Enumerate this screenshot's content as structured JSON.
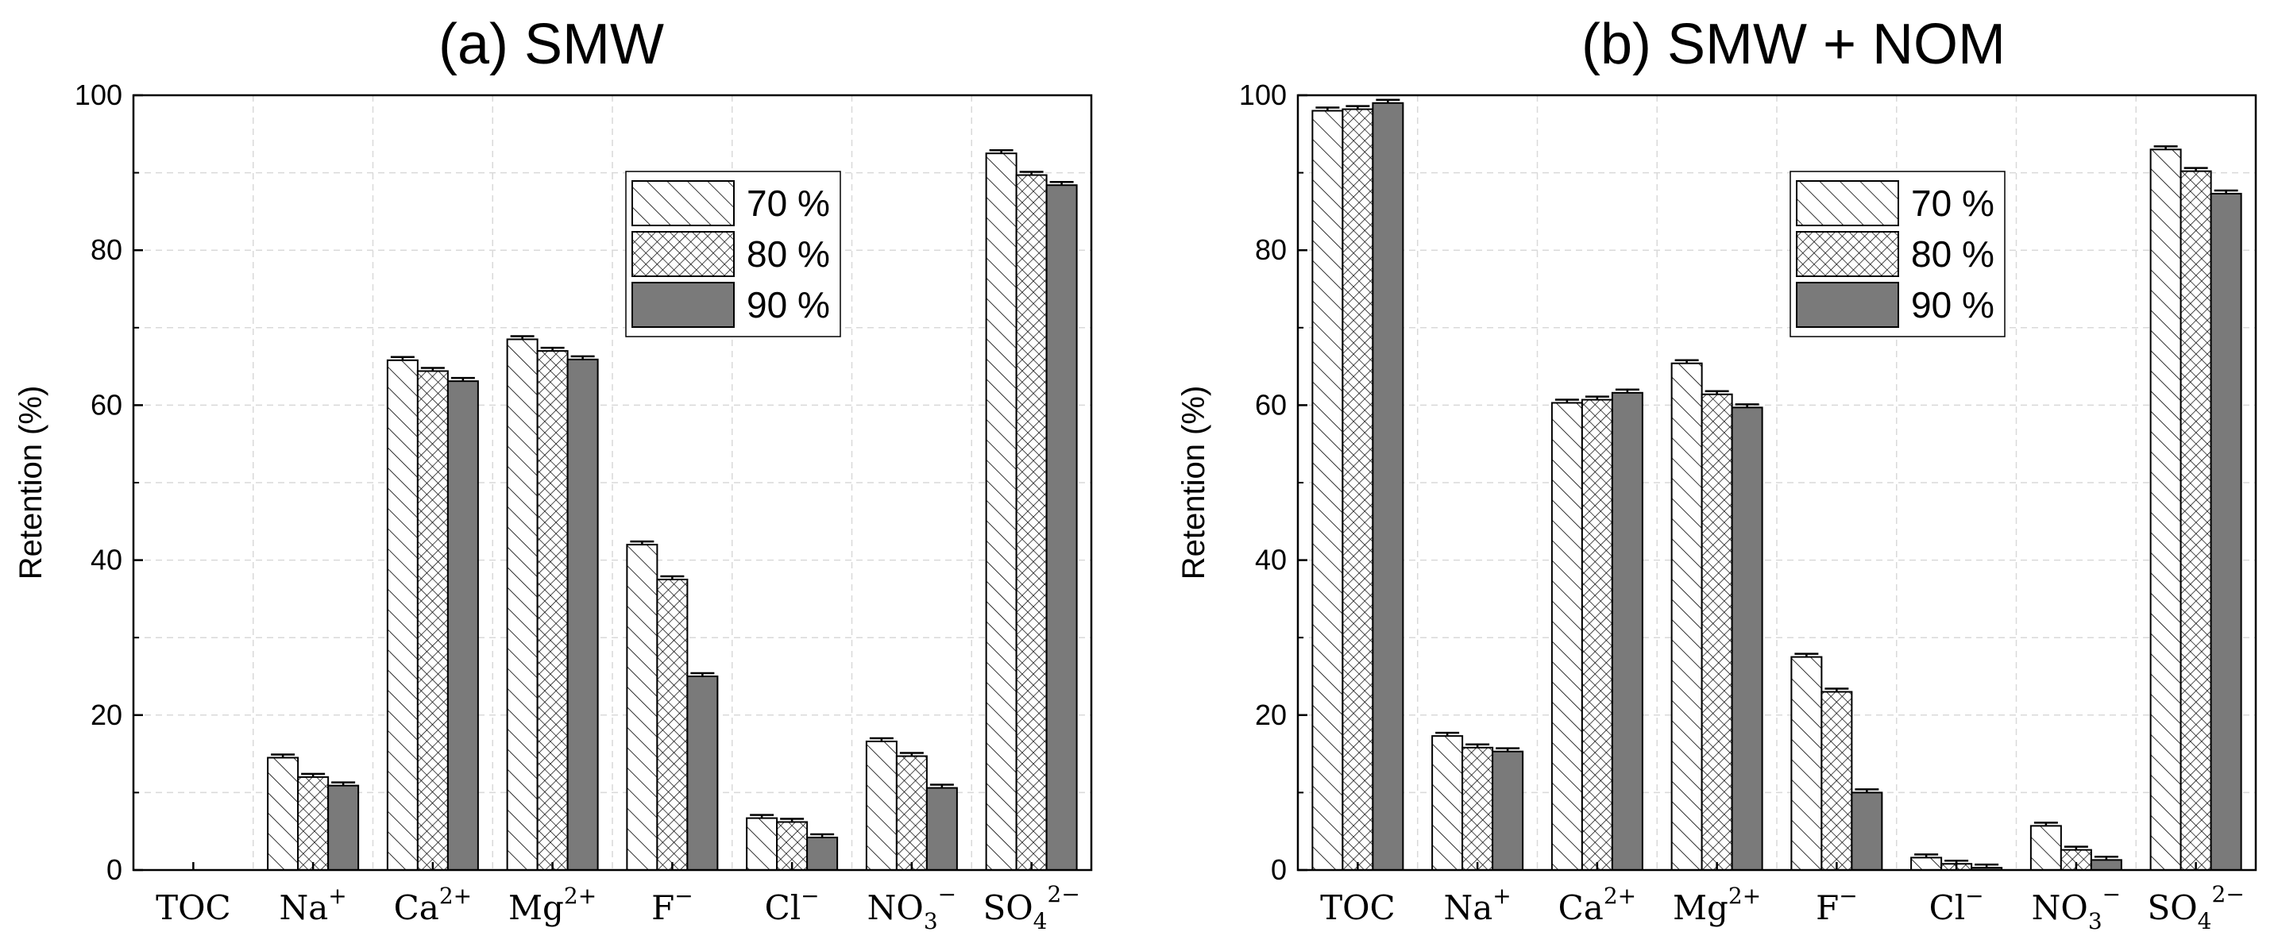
{
  "colors": {
    "bar_70": "#ffffff",
    "bar_80": "#ffffff",
    "bar_90": "#7a7a7a",
    "stroke": "#000000",
    "grid": "#d9d9d9"
  },
  "chart_data": [
    {
      "type": "bar",
      "title": "(a) SMW",
      "xlabel": "",
      "ylabel": "Retention (%)",
      "ylim": [
        0,
        100
      ],
      "yticks": [
        "0",
        "20",
        "40",
        "60",
        "80",
        "100"
      ],
      "grid": true,
      "legend_position": "top-center",
      "categories": [
        {
          "base": "TOC",
          "sub": "",
          "sup": ""
        },
        {
          "base": "Na",
          "sub": "",
          "sup": "+"
        },
        {
          "base": "Ca",
          "sub": "",
          "sup": "2+"
        },
        {
          "base": "Mg",
          "sub": "",
          "sup": "2+"
        },
        {
          "base": "F",
          "sub": "",
          "sup": "−"
        },
        {
          "base": "Cl",
          "sub": "",
          "sup": "−"
        },
        {
          "base": "NO",
          "sub": "3",
          "sup": "−"
        },
        {
          "base": "SO",
          "sub": "4",
          "sup": "2−"
        }
      ],
      "series": [
        {
          "name": "70 %",
          "pattern": "hatch",
          "values": [
            0,
            14.5,
            65.8,
            68.5,
            42.0,
            6.7,
            16.6,
            92.5
          ]
        },
        {
          "name": "80 %",
          "pattern": "crosshatch",
          "values": [
            0,
            12.0,
            64.4,
            67.0,
            37.5,
            6.2,
            14.7,
            89.7
          ]
        },
        {
          "name": "90 %",
          "pattern": "solid",
          "values": [
            0,
            10.9,
            63.1,
            65.9,
            25.0,
            4.2,
            10.6,
            88.4
          ]
        }
      ]
    },
    {
      "type": "bar",
      "title": "(b) SMW + NOM",
      "xlabel": "",
      "ylabel": "Retention (%)",
      "ylim": [
        0,
        100
      ],
      "yticks": [
        "0",
        "20",
        "40",
        "60",
        "80",
        "100"
      ],
      "grid": true,
      "legend_position": "top-center",
      "categories": [
        {
          "base": "TOC",
          "sub": "",
          "sup": ""
        },
        {
          "base": "Na",
          "sub": "",
          "sup": "+"
        },
        {
          "base": "Ca",
          "sub": "",
          "sup": "2+"
        },
        {
          "base": "Mg",
          "sub": "",
          "sup": "2+"
        },
        {
          "base": "F",
          "sub": "",
          "sup": "−"
        },
        {
          "base": "Cl",
          "sub": "",
          "sup": "−"
        },
        {
          "base": "NO",
          "sub": "3",
          "sup": "−"
        },
        {
          "base": "SO",
          "sub": "4",
          "sup": "2−"
        }
      ],
      "series": [
        {
          "name": "70 %",
          "pattern": "hatch",
          "values": [
            98.0,
            17.3,
            60.3,
            65.4,
            27.5,
            1.6,
            5.7,
            93.0
          ]
        },
        {
          "name": "80 %",
          "pattern": "crosshatch",
          "values": [
            98.2,
            15.8,
            60.7,
            61.4,
            23.0,
            0.8,
            2.6,
            90.2
          ]
        },
        {
          "name": "90 %",
          "pattern": "solid",
          "values": [
            99.0,
            15.3,
            61.6,
            59.7,
            10.0,
            0.3,
            1.3,
            87.3
          ]
        }
      ]
    }
  ]
}
